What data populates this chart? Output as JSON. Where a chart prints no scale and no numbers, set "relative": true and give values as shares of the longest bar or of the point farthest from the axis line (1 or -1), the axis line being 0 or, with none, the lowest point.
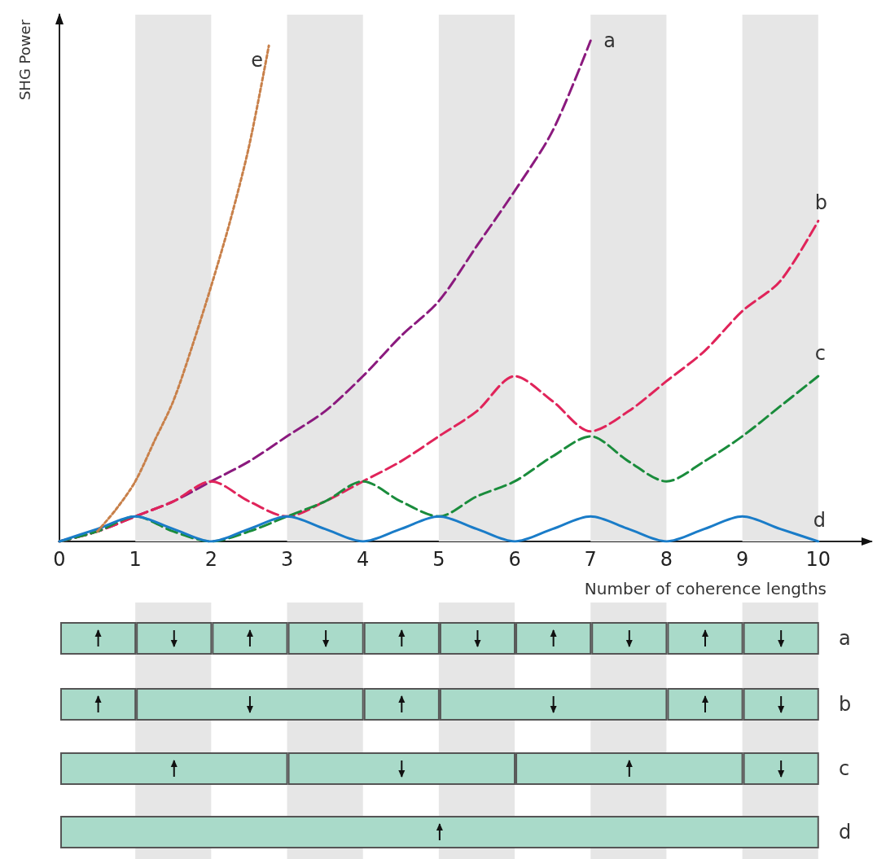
{
  "chart_data": {
    "type": "line",
    "relative": true,
    "xlabel": "Number of coherence lengths",
    "ylabel": "SHG Power",
    "xlim": [
      0,
      10.7
    ],
    "xticks": [
      0,
      1,
      2,
      3,
      4,
      5,
      6,
      7,
      8,
      9,
      10
    ],
    "grid": false,
    "legend": false,
    "marker": "none",
    "bands": [
      {
        "axis": "x",
        "from": 1,
        "to": 2,
        "color": "#e6e6e6"
      },
      {
        "axis": "x",
        "from": 3,
        "to": 4,
        "color": "#e6e6e6"
      },
      {
        "axis": "x",
        "from": 5,
        "to": 6,
        "color": "#e6e6e6"
      },
      {
        "axis": "x",
        "from": 7,
        "to": 8,
        "color": "#e6e6e6"
      },
      {
        "axis": "x",
        "from": 9,
        "to": 10,
        "color": "#e6e6e6"
      }
    ],
    "series": [
      {
        "name": "a",
        "color": "#8b1a7e",
        "line_style": "dashed",
        "x": [
          0,
          0.5,
          1,
          1.5,
          2,
          2.5,
          3,
          3.5,
          4,
          4.5,
          5,
          5.5,
          6,
          6.5,
          7
        ],
        "values": [
          0,
          0.02,
          0.05,
          0.08,
          0.12,
          0.16,
          0.21,
          0.26,
          0.33,
          0.41,
          0.48,
          0.59,
          0.7,
          0.82,
          1
        ]
      },
      {
        "name": "b",
        "color": "#e0245a",
        "line_style": "dashed",
        "x": [
          0,
          0.5,
          1,
          1.5,
          2,
          2.5,
          3,
          3.5,
          4,
          4.5,
          5,
          5.5,
          6,
          6.5,
          7,
          7.5,
          8,
          8.5,
          9,
          9.5,
          10
        ],
        "values": [
          0,
          0.02,
          0.05,
          0.08,
          0.12,
          0.08,
          0.05,
          0.08,
          0.12,
          0.16,
          0.21,
          0.26,
          0.33,
          0.28,
          0.22,
          0.26,
          0.32,
          0.38,
          0.46,
          0.52,
          0.64
        ]
      },
      {
        "name": "c",
        "color": "#1a8c3c",
        "line_style": "dashed",
        "x": [
          0,
          0.5,
          1,
          1.5,
          2,
          2.5,
          3,
          3.5,
          4,
          4.5,
          5,
          5.5,
          6,
          6.5,
          7,
          7.5,
          8,
          8.5,
          9,
          9.5,
          10
        ],
        "values": [
          0,
          0.02,
          0.05,
          0.02,
          0,
          0.02,
          0.05,
          0.08,
          0.12,
          0.08,
          0.05,
          0.09,
          0.12,
          0.17,
          0.21,
          0.16,
          0.12,
          0.16,
          0.21,
          0.27,
          0.33
        ]
      },
      {
        "name": "d",
        "color": "#1a7cc8",
        "line_style": "solid",
        "x": [
          0,
          0.5,
          1,
          1.5,
          2,
          2.5,
          3,
          3.5,
          4,
          4.5,
          5,
          5.5,
          6,
          6.5,
          7,
          7.5,
          8,
          8.5,
          9,
          9.5,
          10
        ],
        "values": [
          0,
          0.025,
          0.05,
          0.025,
          0,
          0.025,
          0.05,
          0.025,
          0,
          0.025,
          0.05,
          0.025,
          0,
          0.025,
          0.05,
          0.025,
          0,
          0.025,
          0.05,
          0.025,
          0
        ]
      },
      {
        "name": "e",
        "color": "#c8804a",
        "line_style": "dotted",
        "x": [
          0.5,
          0.75,
          1,
          1.25,
          1.5,
          1.75,
          2,
          2.25,
          2.5,
          2.76
        ],
        "values": [
          0.02,
          0.065,
          0.12,
          0.2,
          0.28,
          0.39,
          0.51,
          0.64,
          0.79,
          0.99
        ]
      }
    ],
    "annotations": [
      "a",
      "b",
      "c",
      "d"
    ]
  }
}
